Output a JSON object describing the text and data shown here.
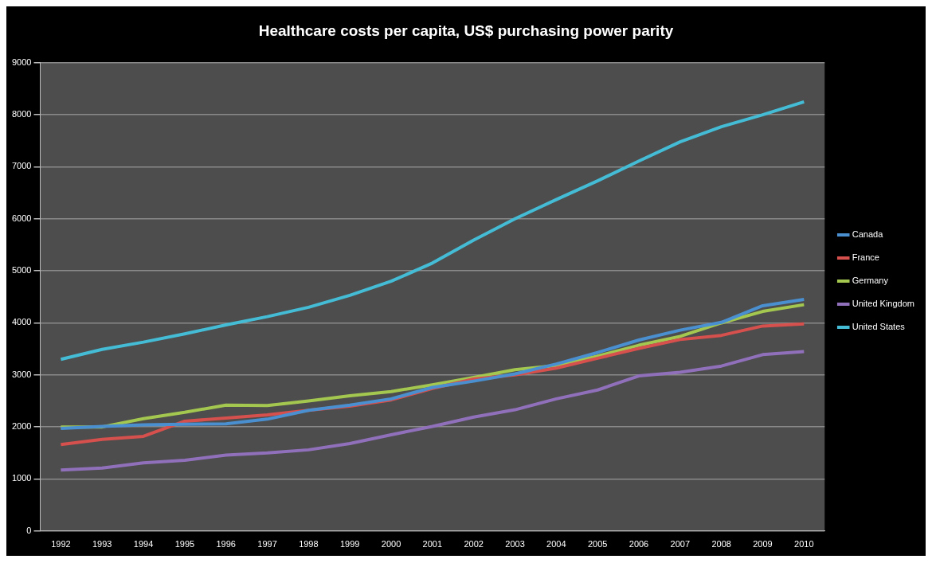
{
  "chart_data": {
    "type": "line",
    "title": "Healthcare costs per capita, US$ purchasing power parity",
    "categories": [
      "1992",
      "1993",
      "1994",
      "1995",
      "1996",
      "1997",
      "1998",
      "1999",
      "2000",
      "2001",
      "2002",
      "2003",
      "2004",
      "2005",
      "2006",
      "2007",
      "2008",
      "2009",
      "2010"
    ],
    "series": [
      {
        "name": "Canada",
        "color": "#4a90d0",
        "values": [
          1970,
          2010,
          2040,
          2050,
          2060,
          2150,
          2320,
          2420,
          2540,
          2760,
          2880,
          3020,
          3210,
          3430,
          3670,
          3860,
          4010,
          4330,
          4450
        ]
      },
      {
        "name": "France",
        "color": "#d6504d",
        "values": [
          1660,
          1760,
          1820,
          2110,
          2170,
          2230,
          2320,
          2400,
          2520,
          2740,
          2920,
          3000,
          3130,
          3320,
          3510,
          3680,
          3760,
          3940,
          3980
        ]
      },
      {
        "name": "Germany",
        "color": "#a4c750",
        "values": [
          2000,
          2000,
          2160,
          2280,
          2420,
          2410,
          2500,
          2600,
          2680,
          2810,
          2950,
          3100,
          3180,
          3360,
          3570,
          3740,
          4000,
          4220,
          4350
        ]
      },
      {
        "name": "United Kingdom",
        "color": "#9070bb",
        "values": [
          1170,
          1210,
          1310,
          1360,
          1460,
          1500,
          1560,
          1680,
          1850,
          2010,
          2190,
          2330,
          2540,
          2710,
          2980,
          3050,
          3170,
          3390,
          3450
        ]
      },
      {
        "name": "United States",
        "color": "#45bcd6",
        "values": [
          3300,
          3490,
          3630,
          3790,
          3960,
          4120,
          4300,
          4530,
          4800,
          5150,
          5590,
          6000,
          6370,
          6730,
          7110,
          7480,
          7770,
          8000,
          8250
        ]
      }
    ],
    "ylim": [
      0,
      9000
    ],
    "yticks": [
      0,
      1000,
      2000,
      3000,
      4000,
      5000,
      6000,
      7000,
      8000,
      9000
    ],
    "grid": "y",
    "legend": "right",
    "marker": "none",
    "line_style": "solid"
  }
}
